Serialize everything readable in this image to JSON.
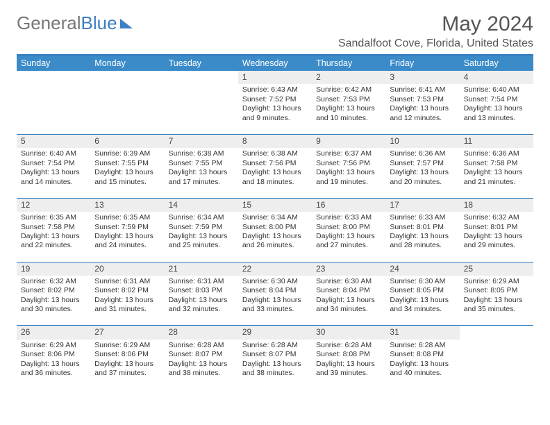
{
  "logo": {
    "text_gray": "General",
    "text_blue": "Blue"
  },
  "title": "May 2024",
  "location": "Sandalfoot Cove, Florida, United States",
  "colors": {
    "header_bg": "#3b8bc9",
    "header_border": "#2e7bbf",
    "daynum_bg": "#eeeeee",
    "text": "#333333",
    "logo_blue": "#3b7fc4",
    "logo_gray": "#777777"
  },
  "day_headers": [
    "Sunday",
    "Monday",
    "Tuesday",
    "Wednesday",
    "Thursday",
    "Friday",
    "Saturday"
  ],
  "weeks": [
    [
      null,
      null,
      null,
      {
        "n": "1",
        "sr": "6:43 AM",
        "ss": "7:52 PM",
        "dl": "13 hours and 9 minutes."
      },
      {
        "n": "2",
        "sr": "6:42 AM",
        "ss": "7:53 PM",
        "dl": "13 hours and 10 minutes."
      },
      {
        "n": "3",
        "sr": "6:41 AM",
        "ss": "7:53 PM",
        "dl": "13 hours and 12 minutes."
      },
      {
        "n": "4",
        "sr": "6:40 AM",
        "ss": "7:54 PM",
        "dl": "13 hours and 13 minutes."
      }
    ],
    [
      {
        "n": "5",
        "sr": "6:40 AM",
        "ss": "7:54 PM",
        "dl": "13 hours and 14 minutes."
      },
      {
        "n": "6",
        "sr": "6:39 AM",
        "ss": "7:55 PM",
        "dl": "13 hours and 15 minutes."
      },
      {
        "n": "7",
        "sr": "6:38 AM",
        "ss": "7:55 PM",
        "dl": "13 hours and 17 minutes."
      },
      {
        "n": "8",
        "sr": "6:38 AM",
        "ss": "7:56 PM",
        "dl": "13 hours and 18 minutes."
      },
      {
        "n": "9",
        "sr": "6:37 AM",
        "ss": "7:56 PM",
        "dl": "13 hours and 19 minutes."
      },
      {
        "n": "10",
        "sr": "6:36 AM",
        "ss": "7:57 PM",
        "dl": "13 hours and 20 minutes."
      },
      {
        "n": "11",
        "sr": "6:36 AM",
        "ss": "7:58 PM",
        "dl": "13 hours and 21 minutes."
      }
    ],
    [
      {
        "n": "12",
        "sr": "6:35 AM",
        "ss": "7:58 PM",
        "dl": "13 hours and 22 minutes."
      },
      {
        "n": "13",
        "sr": "6:35 AM",
        "ss": "7:59 PM",
        "dl": "13 hours and 24 minutes."
      },
      {
        "n": "14",
        "sr": "6:34 AM",
        "ss": "7:59 PM",
        "dl": "13 hours and 25 minutes."
      },
      {
        "n": "15",
        "sr": "6:34 AM",
        "ss": "8:00 PM",
        "dl": "13 hours and 26 minutes."
      },
      {
        "n": "16",
        "sr": "6:33 AM",
        "ss": "8:00 PM",
        "dl": "13 hours and 27 minutes."
      },
      {
        "n": "17",
        "sr": "6:33 AM",
        "ss": "8:01 PM",
        "dl": "13 hours and 28 minutes."
      },
      {
        "n": "18",
        "sr": "6:32 AM",
        "ss": "8:01 PM",
        "dl": "13 hours and 29 minutes."
      }
    ],
    [
      {
        "n": "19",
        "sr": "6:32 AM",
        "ss": "8:02 PM",
        "dl": "13 hours and 30 minutes."
      },
      {
        "n": "20",
        "sr": "6:31 AM",
        "ss": "8:02 PM",
        "dl": "13 hours and 31 minutes."
      },
      {
        "n": "21",
        "sr": "6:31 AM",
        "ss": "8:03 PM",
        "dl": "13 hours and 32 minutes."
      },
      {
        "n": "22",
        "sr": "6:30 AM",
        "ss": "8:04 PM",
        "dl": "13 hours and 33 minutes."
      },
      {
        "n": "23",
        "sr": "6:30 AM",
        "ss": "8:04 PM",
        "dl": "13 hours and 34 minutes."
      },
      {
        "n": "24",
        "sr": "6:30 AM",
        "ss": "8:05 PM",
        "dl": "13 hours and 34 minutes."
      },
      {
        "n": "25",
        "sr": "6:29 AM",
        "ss": "8:05 PM",
        "dl": "13 hours and 35 minutes."
      }
    ],
    [
      {
        "n": "26",
        "sr": "6:29 AM",
        "ss": "8:06 PM",
        "dl": "13 hours and 36 minutes."
      },
      {
        "n": "27",
        "sr": "6:29 AM",
        "ss": "8:06 PM",
        "dl": "13 hours and 37 minutes."
      },
      {
        "n": "28",
        "sr": "6:28 AM",
        "ss": "8:07 PM",
        "dl": "13 hours and 38 minutes."
      },
      {
        "n": "29",
        "sr": "6:28 AM",
        "ss": "8:07 PM",
        "dl": "13 hours and 38 minutes."
      },
      {
        "n": "30",
        "sr": "6:28 AM",
        "ss": "8:08 PM",
        "dl": "13 hours and 39 minutes."
      },
      {
        "n": "31",
        "sr": "6:28 AM",
        "ss": "8:08 PM",
        "dl": "13 hours and 40 minutes."
      },
      null
    ]
  ],
  "labels": {
    "sunrise": "Sunrise:",
    "sunset": "Sunset:",
    "daylight": "Daylight:"
  }
}
